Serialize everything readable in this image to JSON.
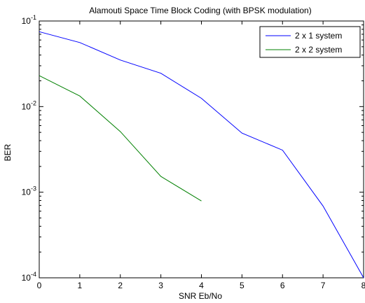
{
  "chart_data": {
    "type": "line",
    "title": "Alamouti Space Time Block Coding (with BPSK modulation)",
    "xlabel": "SNR Eb/No",
    "ylabel": "BER",
    "xlim": [
      0,
      8
    ],
    "ylim": [
      0.0001,
      0.1
    ],
    "yscale": "log",
    "x_ticks": [
      "0",
      "1",
      "2",
      "3",
      "4",
      "5",
      "6",
      "7",
      "8"
    ],
    "y_ticks": [
      {
        "value": 0.1,
        "base": "10",
        "exp": "-1"
      },
      {
        "value": 0.01,
        "base": "10",
        "exp": "-2"
      },
      {
        "value": 0.001,
        "base": "10",
        "exp": "-3"
      },
      {
        "value": 0.0001,
        "base": "10",
        "exp": "-4"
      }
    ],
    "grid": false,
    "legend_position": "top-right",
    "series": [
      {
        "name": "2 x 1 system",
        "color": "#0000ff",
        "x": [
          0,
          1,
          2,
          3,
          4,
          5,
          6,
          7,
          8
        ],
        "y": [
          0.075,
          0.056,
          0.035,
          0.0245,
          0.0125,
          0.0049,
          0.0031,
          0.00069,
          0.0001
        ]
      },
      {
        "name": "2 x 2 system",
        "color": "#008000",
        "x": [
          0,
          1,
          2,
          3,
          4
        ],
        "y": [
          0.023,
          0.0133,
          0.0051,
          0.00153,
          0.00079
        ]
      }
    ]
  }
}
